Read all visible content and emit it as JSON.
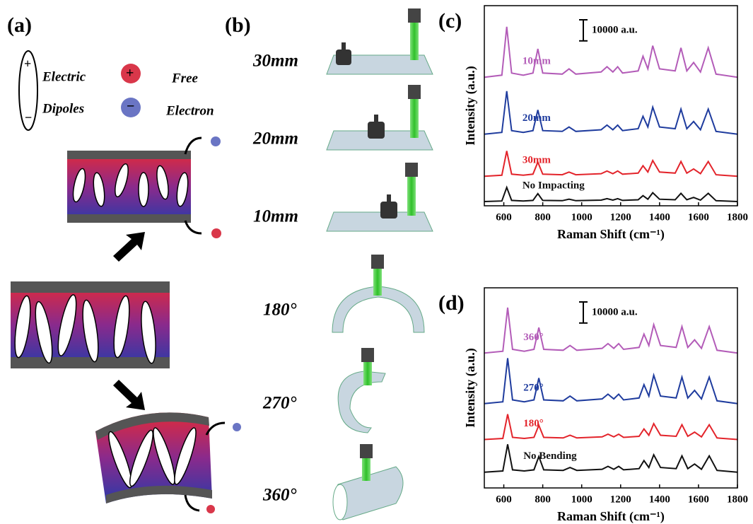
{
  "panel_a": {
    "label": "(a)",
    "dipole_text": [
      "Electric",
      "Dipoles"
    ],
    "electron_text": [
      "Free",
      "Electron"
    ]
  },
  "panel_b": {
    "label": "(b)",
    "conditions": [
      "30mm",
      "20mm",
      "10mm",
      "180°",
      "270°",
      "360°"
    ]
  },
  "chart_data": [
    {
      "type": "line",
      "label": "(c)",
      "x_label": "Raman Shift (cm⁻¹)",
      "y_label": "Intensity (a.u.)",
      "scale_bar": {
        "value": 10000,
        "label": "10000 a.u."
      },
      "x": [
        500,
        590,
        615,
        640,
        700,
        750,
        775,
        800,
        900,
        935,
        970,
        1100,
        1130,
        1160,
        1185,
        1210,
        1290,
        1315,
        1340,
        1365,
        1400,
        1480,
        1510,
        1540,
        1575,
        1610,
        1650,
        1690,
        1800
      ],
      "xlim": [
        500,
        1800
      ],
      "xticks": [
        600,
        800,
        1000,
        1200,
        1400,
        1600,
        1800
      ],
      "ylim": [
        0,
        95000
      ],
      "series": [
        {
          "name": "10mm",
          "color": "#b35cb8",
          "values": [
            61000,
            62000,
            85000,
            63000,
            62000,
            63000,
            74500,
            63000,
            62500,
            65000,
            62500,
            63500,
            66000,
            63500,
            66000,
            63000,
            64000,
            71000,
            65000,
            76000,
            65000,
            64000,
            75000,
            64000,
            68000,
            63500,
            75000,
            62500,
            61000
          ]
        },
        {
          "name": "20mm",
          "color": "#1f3c9e",
          "values": [
            34000,
            34850,
            54400,
            35700,
            34850,
            35700,
            45500,
            35700,
            35300,
            37400,
            35300,
            36100,
            38300,
            36100,
            38300,
            35700,
            36600,
            42500,
            37400,
            46800,
            37400,
            36600,
            45900,
            36600,
            40000,
            36100,
            45900,
            35300,
            34000
          ]
        },
        {
          "name": "30mm",
          "color": "#e3242b",
          "values": [
            14000,
            14500,
            26000,
            15000,
            14500,
            15000,
            20750,
            15000,
            14750,
            16000,
            14750,
            15250,
            16500,
            15250,
            16500,
            15000,
            15500,
            19000,
            16000,
            21500,
            16000,
            15500,
            21000,
            15500,
            17500,
            15250,
            21000,
            14750,
            14000
          ]
        },
        {
          "name": "No Impacting",
          "color": "#111111",
          "values": [
            2000,
            2280,
            8720,
            2560,
            2280,
            2560,
            5780,
            2560,
            2420,
            3120,
            2420,
            2700,
            3400,
            2700,
            3400,
            2560,
            2840,
            4800,
            3120,
            6200,
            3120,
            2840,
            5920,
            2840,
            3960,
            2700,
            5920,
            2420,
            2000
          ]
        }
      ]
    },
    {
      "type": "line",
      "label": "(d)",
      "x_label": "Raman Shift (cm⁻¹)",
      "y_label": "Intensity (a.u.)",
      "scale_bar": {
        "value": 10000,
        "label": "10000 a.u."
      },
      "x": [
        500,
        595,
        620,
        645,
        705,
        755,
        780,
        805,
        905,
        940,
        975,
        1105,
        1135,
        1165,
        1190,
        1215,
        1295,
        1320,
        1345,
        1370,
        1405,
        1485,
        1515,
        1545,
        1580,
        1615,
        1655,
        1695,
        1800
      ],
      "xlim": [
        500,
        1800
      ],
      "xticks": [
        600,
        800,
        1000,
        1200,
        1400,
        1600,
        1800
      ],
      "ylim": [
        0,
        95000
      ],
      "series": [
        {
          "name": "360°",
          "color": "#b35cb8",
          "values": [
            64000,
            64900,
            85600,
            65800,
            64900,
            65800,
            76150,
            65800,
            65350,
            67600,
            65350,
            66250,
            68500,
            66250,
            68500,
            65800,
            66700,
            73000,
            67600,
            77500,
            67600,
            66700,
            76600,
            66700,
            70300,
            66250,
            76600,
            65350,
            64000
          ]
        },
        {
          "name": "270°",
          "color": "#1f3c9e",
          "values": [
            40000,
            40900,
            61600,
            41800,
            40900,
            41800,
            52150,
            41800,
            41350,
            43600,
            41350,
            42250,
            44500,
            42250,
            44500,
            41800,
            42700,
            49000,
            43600,
            53500,
            43600,
            42700,
            52600,
            42700,
            46300,
            42250,
            52600,
            41350,
            40000
          ]
        },
        {
          "name": "180°",
          "color": "#e3242b",
          "values": [
            23000,
            23500,
            35000,
            24000,
            23500,
            24000,
            29750,
            24000,
            23750,
            25000,
            23750,
            24250,
            25500,
            24250,
            25500,
            24000,
            24500,
            28000,
            25000,
            30500,
            25000,
            24500,
            30000,
            24500,
            26500,
            24250,
            30000,
            23750,
            23000
          ]
        },
        {
          "name": "No Bending",
          "color": "#111111",
          "values": [
            7500,
            8050,
            20700,
            8600,
            8050,
            8600,
            14925,
            8600,
            8325,
            9700,
            8325,
            8875,
            10250,
            8875,
            10250,
            8600,
            9150,
            13000,
            9700,
            15750,
            9700,
            9150,
            15200,
            9150,
            11350,
            8875,
            15200,
            8325,
            7500
          ]
        }
      ]
    }
  ]
}
